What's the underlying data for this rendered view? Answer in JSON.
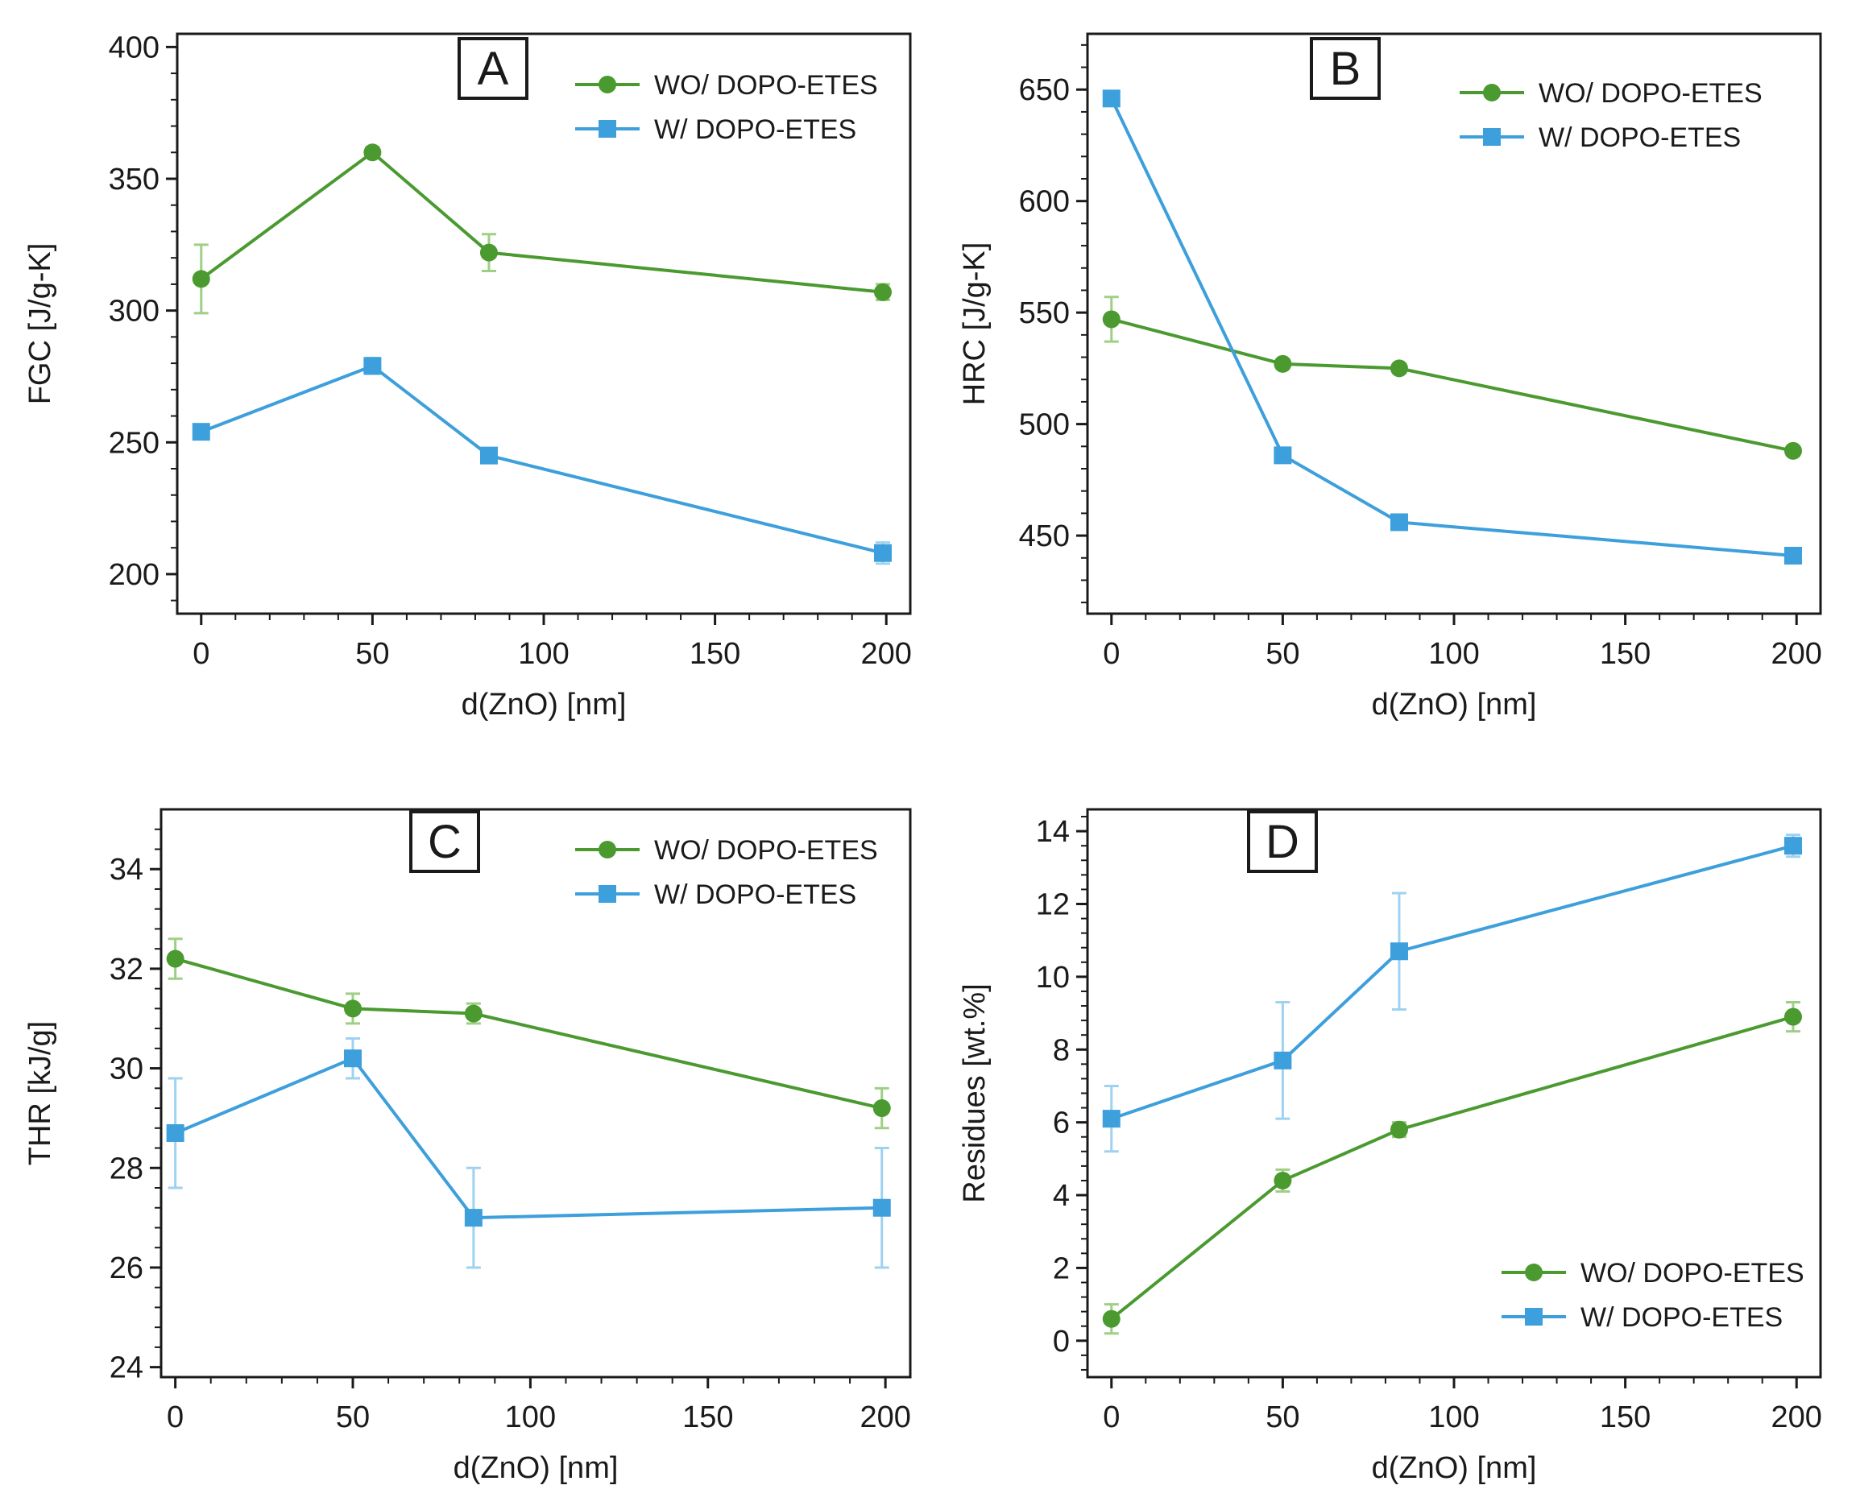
{
  "figure_colors": {
    "wo_series": "#4a9a30",
    "w_series": "#3d9fdb",
    "wo_error": "#9fcf86",
    "w_error": "#9fd2f0",
    "axis": "#1a1a1a"
  },
  "chart_data": [
    {
      "type": "line",
      "panel": "A",
      "xlabel": "d(ZnO) [nm]",
      "ylabel": "FGC [J/g-K]",
      "xlim": [
        -7,
        207
      ],
      "ylim": [
        185,
        405
      ],
      "xticks": [
        0,
        50,
        100,
        150,
        200
      ],
      "yticks": [
        200,
        250,
        300,
        350,
        400
      ],
      "legend_position": "top-right",
      "series": [
        {
          "name": "WO/ DOPO-ETES",
          "marker": "circle",
          "x": [
            0,
            50,
            84,
            199
          ],
          "y": [
            312,
            360,
            322,
            307
          ],
          "err": [
            13,
            2,
            7,
            3
          ]
        },
        {
          "name": "W/ DOPO-ETES",
          "marker": "square",
          "x": [
            0,
            50,
            84,
            199
          ],
          "y": [
            254,
            279,
            245,
            208
          ],
          "err": [
            2,
            3,
            2,
            4
          ]
        }
      ]
    },
    {
      "type": "line",
      "panel": "B",
      "xlabel": "d(ZnO) [nm]",
      "ylabel": "HRC [J/g-K]",
      "xlim": [
        -7,
        207
      ],
      "ylim": [
        415,
        675
      ],
      "xticks": [
        0,
        50,
        100,
        150,
        200
      ],
      "yticks": [
        450,
        500,
        550,
        600,
        650
      ],
      "legend_position": "top-right",
      "series": [
        {
          "name": "WO/ DOPO-ETES",
          "marker": "circle",
          "x": [
            0,
            50,
            84,
            199
          ],
          "y": [
            547,
            527,
            525,
            488
          ],
          "err": [
            10,
            2,
            2,
            2
          ]
        },
        {
          "name": "W/ DOPO-ETES",
          "marker": "square",
          "x": [
            0,
            50,
            84,
            199
          ],
          "y": [
            646,
            486,
            456,
            441
          ],
          "err": [
            2,
            3,
            3,
            3
          ]
        }
      ]
    },
    {
      "type": "line",
      "panel": "C",
      "xlabel": "d(ZnO) [nm]",
      "ylabel": "THR [kJ/g]",
      "xlim": [
        -4,
        207
      ],
      "ylim": [
        23.8,
        35.2
      ],
      "xticks": [
        0,
        50,
        100,
        150,
        200
      ],
      "yticks": [
        24,
        26,
        28,
        30,
        32,
        34
      ],
      "legend_position": "top-right",
      "series": [
        {
          "name": "WO/ DOPO-ETES",
          "marker": "circle",
          "x": [
            0,
            50,
            84,
            199
          ],
          "y": [
            32.2,
            31.2,
            31.1,
            29.2
          ],
          "err": [
            0.4,
            0.3,
            0.2,
            0.4
          ]
        },
        {
          "name": "W/ DOPO-ETES",
          "marker": "square",
          "x": [
            0,
            50,
            84,
            199
          ],
          "y": [
            28.7,
            30.2,
            27.0,
            27.2
          ],
          "err": [
            1.1,
            0.4,
            1.0,
            1.2
          ]
        }
      ]
    },
    {
      "type": "line",
      "panel": "D",
      "xlabel": "d(ZnO) [nm]",
      "ylabel": "Residues [wt.%]",
      "xlim": [
        -7,
        207
      ],
      "ylim": [
        -1,
        14.6
      ],
      "xticks": [
        0,
        50,
        100,
        150,
        200
      ],
      "yticks": [
        0,
        2,
        4,
        6,
        8,
        10,
        12,
        14
      ],
      "legend_position": "bottom-right",
      "series": [
        {
          "name": "WO/ DOPO-ETES",
          "marker": "circle",
          "x": [
            0,
            50,
            84,
            199
          ],
          "y": [
            0.6,
            4.4,
            5.8,
            8.9
          ],
          "err": [
            0.4,
            0.3,
            0.2,
            0.4
          ]
        },
        {
          "name": "W/ DOPO-ETES",
          "marker": "square",
          "x": [
            0,
            50,
            84,
            199
          ],
          "y": [
            6.1,
            7.7,
            10.7,
            13.6
          ],
          "err": [
            0.9,
            1.6,
            1.6,
            0.3
          ]
        }
      ]
    }
  ]
}
